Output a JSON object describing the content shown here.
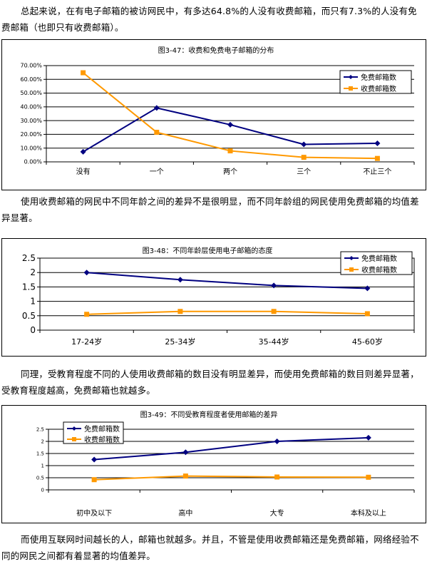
{
  "paragraphs": [
    "总起来说，在有电子邮箱的被访网民中，有多达64.8%的人没有收费邮箱，而只有7.3%的人没有免费邮箱（也即只有收费邮箱）。",
    "使用收费邮箱的网民中不同年龄之间的差异不是很明显，而不同年龄组的网民使用免费邮箱的均值差异显著。",
    "同理，受教育程度不同的人使用收费邮箱的数目没有明显差异，而使用免费邮箱的数目则差异显著，受教育程度越高，免费邮箱也就越多。",
    "而使用互联网时间越长的人，邮箱也就越多。并且，不管是使用收费邮箱还是免费邮箱，网络经验不同的网民之间都有着显著的均值差异。"
  ],
  "colors": {
    "free": "#000080",
    "paid": "#ff9900"
  },
  "chart_data": [
    {
      "type": "line",
      "title": "图3-47：收费和免费电子邮箱的分布",
      "categories": [
        "没有",
        "一个",
        "两个",
        "三个",
        "不止三个"
      ],
      "ylim": [
        0,
        70
      ],
      "yticks": [
        "0.00%",
        "10.00%",
        "20.00%",
        "30.00%",
        "40.00%",
        "50.00%",
        "60.00%",
        "70.00%"
      ],
      "series": [
        {
          "name": "免费邮箱数",
          "values": [
            7.3,
            39.2,
            27.0,
            12.7,
            13.5
          ]
        },
        {
          "name": "收费邮箱数",
          "values": [
            64.8,
            21.5,
            8.0,
            3.3,
            2.5
          ]
        }
      ],
      "legend": "top-right"
    },
    {
      "type": "line",
      "title": "图3-48：不同年龄层使用电子邮箱的态度",
      "categories": [
        "17-24岁",
        "25-34岁",
        "35-44岁",
        "45-60岁"
      ],
      "ylim": [
        0,
        2.5
      ],
      "yticks": [
        "0",
        "0.5",
        "1",
        "1.5",
        "2",
        "2.5"
      ],
      "series": [
        {
          "name": "免费邮箱数",
          "values": [
            2.0,
            1.75,
            1.55,
            1.45
          ]
        },
        {
          "name": "收费邮箱数",
          "values": [
            0.55,
            0.65,
            0.65,
            0.57
          ]
        }
      ],
      "legend": "top-right"
    },
    {
      "type": "line",
      "title": "图3-49：不同受教育程度者使用邮箱的差异",
      "categories": [
        "初中及以下",
        "高中",
        "大专",
        "本科及以上"
      ],
      "ylim": [
        0,
        2.5
      ],
      "yticks": [
        "0",
        "0.5",
        "1",
        "1.5",
        "2",
        "2.5"
      ],
      "series": [
        {
          "name": "免费邮箱数",
          "values": [
            1.25,
            1.55,
            2.0,
            2.15
          ]
        },
        {
          "name": "收费邮箱数",
          "values": [
            0.42,
            0.57,
            0.53,
            0.52
          ]
        }
      ],
      "legend": "top-left"
    }
  ]
}
